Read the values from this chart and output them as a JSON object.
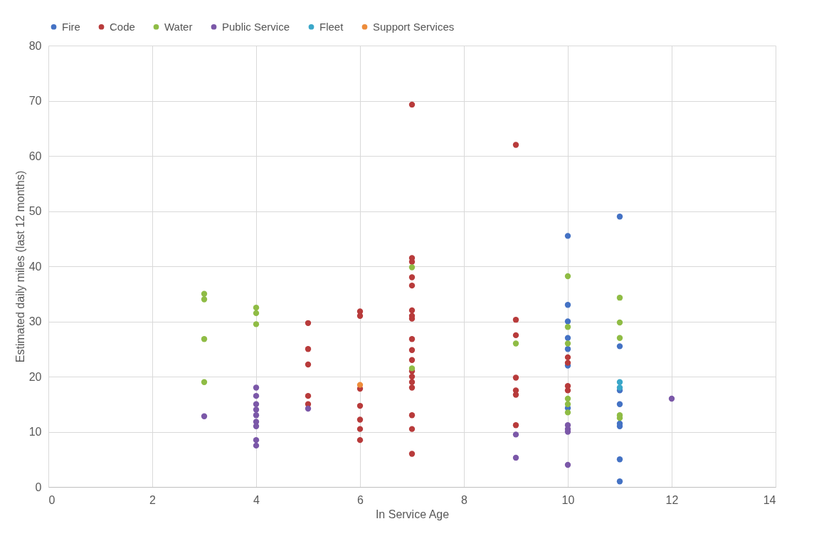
{
  "chart_data": {
    "type": "scatter",
    "xlabel": "In Service Age",
    "ylabel": "Estimated daily miles (last 12 months)",
    "xlim": [
      0,
      14
    ],
    "xticks": [
      0,
      2,
      4,
      6,
      8,
      10,
      12,
      14
    ],
    "ylim": [
      0,
      80
    ],
    "yticks": [
      0,
      10,
      20,
      30,
      40,
      50,
      60,
      70,
      80
    ],
    "grid": true,
    "legend": "top",
    "marker": "circle",
    "series": [
      {
        "name": "Fire",
        "color": "#4472c4",
        "x": [
          10,
          10,
          10,
          10,
          10,
          10,
          10,
          11,
          11,
          11,
          11,
          11,
          11,
          11,
          11
        ],
        "values": [
          45.5,
          33,
          30,
          27,
          25,
          22,
          14.3,
          49,
          25.5,
          17.5,
          15,
          11.5,
          11,
          5,
          1
        ]
      },
      {
        "name": "Code",
        "color": "#b83b3b",
        "x": [
          5,
          5,
          5,
          5,
          5,
          6,
          6,
          6,
          6,
          6,
          6,
          6,
          7,
          7,
          7,
          7,
          7,
          7,
          7,
          7,
          7,
          7,
          7,
          7,
          7,
          7,
          7,
          7,
          7,
          7,
          9,
          9,
          9,
          9,
          9,
          9,
          9,
          10,
          10,
          10,
          10
        ],
        "values": [
          29.7,
          25,
          22.2,
          16.5,
          15,
          31.8,
          31,
          17.8,
          14.7,
          12.2,
          10.5,
          8.5,
          69.3,
          41.5,
          40.8,
          38,
          36.5,
          32,
          31,
          30.5,
          26.8,
          24.8,
          23,
          21,
          20,
          19,
          18,
          13,
          10.5,
          6,
          62,
          30.3,
          27.5,
          19.8,
          17.5,
          16.7,
          11.2,
          23.5,
          22.5,
          18.3,
          17.5
        ]
      },
      {
        "name": "Water",
        "color": "#8fbc45",
        "x": [
          3,
          3,
          3,
          3,
          4,
          4,
          4,
          7,
          7,
          9,
          10,
          10,
          10,
          10,
          10,
          10,
          11,
          11,
          11,
          11,
          11
        ],
        "values": [
          35,
          34,
          26.8,
          19,
          32.5,
          31.5,
          29.5,
          39.8,
          21.5,
          26,
          38.2,
          29,
          26,
          16,
          15,
          13.5,
          34.3,
          29.8,
          27,
          13,
          12.5
        ]
      },
      {
        "name": "Public Service",
        "color": "#7b58a8",
        "x": [
          3,
          4,
          4,
          4,
          4,
          4,
          4,
          4,
          4,
          4,
          5,
          9,
          9,
          10,
          10,
          10,
          10,
          12
        ],
        "values": [
          12.8,
          18,
          16.5,
          15,
          14,
          13,
          11.8,
          11,
          8.5,
          7.5,
          14.2,
          9.5,
          5.3,
          11.2,
          10.5,
          10,
          4,
          16
        ]
      },
      {
        "name": "Fleet",
        "color": "#3aa7c9",
        "x": [
          11,
          11
        ],
        "values": [
          19,
          18
        ]
      },
      {
        "name": "Support Services",
        "color": "#ed8c3b",
        "x": [
          6
        ],
        "values": [
          18.5
        ]
      }
    ]
  }
}
